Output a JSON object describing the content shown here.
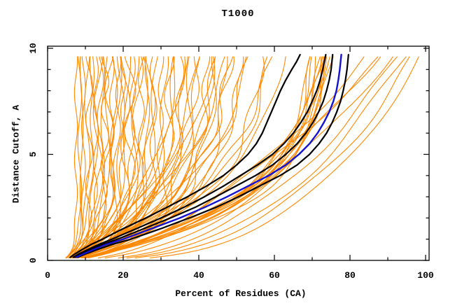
{
  "chart_data": {
    "type": "line",
    "title": "T1000",
    "xlabel": "Percent of Residues (CA)",
    "ylabel": "Distance Cutoff, A",
    "xlim": [
      0,
      100
    ],
    "ylim": [
      0,
      10
    ],
    "x_major_ticks": [
      0,
      20,
      40,
      60,
      80,
      100
    ],
    "x_minor_ticks": [
      10,
      30,
      50,
      70,
      90
    ],
    "y_major_ticks": [
      0,
      5,
      10
    ],
    "y_minor_ticks": [
      1,
      2,
      3,
      4,
      6,
      7,
      8,
      9
    ],
    "grid": false,
    "legend": "none",
    "background": "#ffffff",
    "frame_color": "#000000",
    "curve_y_start": 0.12,
    "curve_y_end": 9.7,
    "highlight_cutoffs": [
      0.15,
      0.3,
      0.5,
      0.75,
      1,
      1.5,
      2,
      2.5,
      3,
      3.5,
      4,
      4.5,
      5,
      5.5,
      6,
      6.5,
      7,
      7.5,
      8,
      8.5,
      9,
      9.35,
      9.7
    ],
    "highlighted_series": [
      {
        "name": "model-black-1",
        "color": "#000000",
        "width": 2.2,
        "percents": [
          6,
          7.2,
          9,
          11.5,
          14.5,
          20,
          26,
          31.5,
          37,
          42,
          46.5,
          50,
          53,
          55.2,
          56.8,
          58,
          59.2,
          60.4,
          61.6,
          63,
          64.6,
          65.8,
          66.8
        ]
      },
      {
        "name": "model-black-2",
        "color": "#000000",
        "width": 2.2,
        "percents": [
          6.8,
          8.2,
          10.5,
          13.5,
          17,
          23.5,
          30,
          36,
          41.5,
          46.5,
          51,
          55.5,
          59.5,
          62.5,
          65,
          67,
          68.7,
          70,
          71.2,
          72.1,
          72.8,
          73.2,
          73.6
        ]
      },
      {
        "name": "model-black-3",
        "color": "#000000",
        "width": 2.2,
        "percents": [
          7.2,
          8.8,
          11.2,
          14.5,
          18.5,
          25.5,
          32.5,
          39,
          44.5,
          49.8,
          55,
          59.5,
          63,
          66,
          68.3,
          70.2,
          71.7,
          72.9,
          73.8,
          74.5,
          75,
          75.2,
          75.4
        ]
      },
      {
        "name": "model-black-4",
        "color": "#000000",
        "width": 2.2,
        "percents": [
          8,
          10,
          13,
          17,
          22,
          30,
          37.5,
          44.5,
          50.5,
          56,
          61.5,
          66,
          69.3,
          71.8,
          73.8,
          75.3,
          76.5,
          77.5,
          78.2,
          78.8,
          79.2,
          79.4,
          79.6
        ]
      },
      {
        "name": "model-blue",
        "color": "#1212d0",
        "width": 2.4,
        "percents": [
          7.6,
          9.4,
          12,
          15.5,
          20,
          27.5,
          35,
          41.5,
          47.5,
          53,
          58.5,
          63,
          66.5,
          69.3,
          71.4,
          73.1,
          74.5,
          75.6,
          76.4,
          76.9,
          77.3,
          77.5,
          77.7
        ]
      }
    ],
    "ensemble_series": {
      "name": "predictions-orange",
      "color": "#ff8800",
      "width": 1.1,
      "curve_param_format": [
        "model e: p=p10-(p10-p0)*exp(-y/k) | model p: p=p0+(p10-p0)*(y/10)^k",
        "p0",
        "p10",
        "k",
        "wiggle_amp",
        "wiggle_freq",
        "wiggle_phase"
      ],
      "curves": [
        [
          "e",
          4.5,
          9.5,
          0.55,
          0.5,
          1.7,
          0.3
        ],
        [
          "e",
          5,
          10.5,
          0.8,
          0.7,
          1.2,
          2.1
        ],
        [
          "e",
          5.5,
          11,
          0.6,
          0.9,
          2.0,
          4.0
        ],
        [
          "e",
          4,
          11.8,
          1.1,
          0.5,
          1.5,
          1.0
        ],
        [
          "e",
          6,
          12.3,
          0.7,
          1.1,
          0.9,
          2.6
        ],
        [
          "e",
          4.8,
          12.8,
          0.9,
          0.6,
          2.2,
          0.7
        ],
        [
          "e",
          5.2,
          13.4,
          0.5,
          1.3,
          1.1,
          3.3
        ],
        [
          "e",
          4.2,
          14,
          1.3,
          0.8,
          1.8,
          5.1
        ],
        [
          "e",
          5.8,
          14.6,
          0.75,
          0.5,
          1.4,
          1.9
        ],
        [
          "e",
          4.6,
          15.2,
          1.0,
          1.0,
          2.4,
          0.2
        ],
        [
          "e",
          5.4,
          15.8,
          0.6,
          0.7,
          1.0,
          2.9
        ],
        [
          "e",
          4.9,
          16.4,
          1.4,
          1.2,
          1.6,
          4.4
        ],
        [
          "e",
          5.1,
          17,
          0.8,
          0.6,
          2.1,
          1.4
        ],
        [
          "e",
          4.4,
          17.6,
          1.1,
          0.9,
          1.3,
          3.8
        ],
        [
          "e",
          5.6,
          18.2,
          0.65,
          1.4,
          0.8,
          0.9
        ],
        [
          "e",
          4.7,
          18.8,
          1.5,
          0.7,
          1.9,
          2.4
        ],
        [
          "e",
          5.3,
          19.4,
          0.9,
          1.0,
          1.2,
          5.6
        ],
        [
          "e",
          4.3,
          20,
          1.2,
          0.6,
          2.3,
          1.1
        ],
        [
          "e",
          5.7,
          20.6,
          0.7,
          1.2,
          1.5,
          3.0
        ],
        [
          "e",
          4.8,
          21.2,
          1.6,
          0.8,
          1.0,
          4.7
        ],
        [
          "e",
          5.0,
          21.8,
          0.85,
          1.5,
          1.7,
          0.5
        ],
        [
          "e",
          4.5,
          22.5,
          1.25,
          0.7,
          2.0,
          2.2
        ],
        [
          "e",
          5.9,
          23.2,
          0.95,
          1.0,
          1.1,
          3.6
        ],
        [
          "e",
          4.6,
          24,
          1.45,
          1.3,
          1.4,
          1.6
        ],
        [
          "e",
          5.2,
          24.8,
          0.75,
          0.8,
          2.2,
          4.9
        ],
        [
          "e",
          4.9,
          25.6,
          1.7,
          1.1,
          0.9,
          0.8
        ],
        [
          "e",
          5.5,
          26.4,
          1.05,
          0.6,
          1.6,
          2.8
        ],
        [
          "e",
          4.4,
          27.2,
          1.35,
          1.4,
          1.2,
          5.3
        ],
        [
          "e",
          5.8,
          28,
          0.8,
          0.9,
          1.8,
          1.3
        ],
        [
          "e",
          4.7,
          29,
          1.9,
          1.2,
          1.0,
          3.2
        ],
        [
          "e",
          5.1,
          30,
          1.15,
          0.7,
          2.1,
          0.4
        ],
        [
          "e",
          4.5,
          31,
          1.5,
          1.0,
          1.3,
          2.0
        ],
        [
          "e",
          5.6,
          32.2,
          0.9,
          1.3,
          1.7,
          4.2
        ],
        [
          "e",
          4.8,
          33.5,
          1.8,
          0.8,
          1.1,
          1.8
        ],
        [
          "e",
          5.3,
          35,
          1.2,
          1.1,
          1.9,
          3.5
        ],
        [
          "e",
          4.6,
          36.5,
          2.1,
          0.9,
          1.4,
          0.6
        ],
        [
          "e",
          5.0,
          38,
          1.4,
          1.2,
          1.0,
          2.5
        ],
        [
          "e",
          5.5,
          40,
          2.3,
          0.8,
          1.6,
          4.6
        ],
        [
          "e",
          4.9,
          42,
          1.6,
          1.0,
          2.0,
          1.2
        ],
        [
          "e",
          5.2,
          44.5,
          2.6,
          1.1,
          1.2,
          3.9
        ],
        [
          "e",
          4.7,
          47,
          1.9,
          0.9,
          1.5,
          0.1
        ],
        [
          "e",
          5.4,
          49.5,
          2.9,
          1.2,
          1.8,
          2.7
        ],
        [
          "e",
          4.5,
          35.5,
          3.2,
          1.0,
          0.9,
          1.5
        ],
        [
          "e",
          5.0,
          38.5,
          3.6,
          0.8,
          1.3,
          3.1
        ],
        [
          "e",
          5.5,
          41,
          2.8,
          1.1,
          1.7,
          0.7
        ],
        [
          "e",
          4.8,
          43.5,
          4.0,
          0.9,
          1.1,
          2.3
        ],
        [
          "e",
          5.2,
          46,
          3.0,
          1.2,
          1.5,
          4.5
        ],
        [
          "e",
          4.6,
          48.5,
          4.3,
          0.8,
          0.8,
          1.0
        ],
        [
          "e",
          5.7,
          51,
          3.3,
          1.0,
          1.9,
          2.9
        ],
        [
          "e",
          4.9,
          53.5,
          4.6,
          0.9,
          1.2,
          0.3
        ],
        [
          "e",
          5.3,
          56,
          3.5,
          1.1,
          1.6,
          3.7
        ],
        [
          "e",
          4.7,
          58.5,
          4.1,
          0.8,
          1.0,
          1.7
        ],
        [
          "e",
          5.1,
          61,
          3.1,
          1.0,
          1.4,
          5.0
        ],
        [
          "e",
          5.6,
          63.5,
          3.8,
          0.9,
          1.8,
          2.1
        ],
        [
          "e",
          4.8,
          66,
          3.4,
          0.7,
          1.1,
          4.1
        ],
        [
          "e",
          5.4,
          58,
          2.7,
          1.2,
          1.5,
          0.9
        ],
        [
          "e",
          4.6,
          52,
          2.5,
          0.9,
          1.9,
          2.6
        ],
        [
          "e",
          5.0,
          45,
          2.2,
          1.1,
          1.3,
          4.8
        ],
        [
          "e",
          6.5,
          71,
          2.6,
          0.6,
          1.2,
          1.1
        ],
        [
          "e",
          7.0,
          72,
          2.8,
          0.8,
          1.6,
          2.8
        ],
        [
          "e",
          6.0,
          72.6,
          2.5,
          0.5,
          1.0,
          0.5
        ],
        [
          "e",
          7.5,
          73.2,
          3.0,
          0.7,
          1.4,
          4.0
        ],
        [
          "e",
          6.8,
          73.8,
          2.7,
          0.6,
          1.8,
          1.9
        ],
        [
          "e",
          6.2,
          74.4,
          2.9,
          0.8,
          1.1,
          3.4
        ],
        [
          "e",
          7.2,
          75,
          2.6,
          0.5,
          1.5,
          0.2
        ],
        [
          "e",
          6.6,
          75.5,
          3.1,
          0.7,
          1.9,
          2.4
        ],
        [
          "e",
          7.4,
          76,
          2.8,
          0.6,
          1.2,
          5.2
        ],
        [
          "e",
          6.4,
          76.6,
          3.2,
          0.8,
          1.6,
          1.4
        ],
        [
          "e",
          7.1,
          77.2,
          2.9,
          0.5,
          1.0,
          3.0
        ],
        [
          "e",
          6.9,
          78,
          3.0,
          0.7,
          1.3,
          0.8
        ],
        [
          "e",
          6.3,
          74.8,
          2.4,
          0.6,
          1.7,
          2.2
        ],
        [
          "p",
          4.5,
          86,
          0.58,
          1.0,
          0.9,
          1.2
        ],
        [
          "p",
          5.0,
          89,
          0.52,
          0.9,
          1.2,
          3.0
        ],
        [
          "p",
          4.2,
          92,
          0.47,
          1.1,
          0.8,
          0.6
        ],
        [
          "p",
          5.5,
          94,
          0.43,
          0.8,
          1.1,
          2.0
        ],
        [
          "p",
          4.8,
          96,
          0.39,
          1.0,
          0.9,
          4.2
        ],
        [
          "p",
          4.0,
          98,
          0.36,
          0.9,
          1.0,
          1.6
        ],
        [
          "p",
          5.2,
          99.5,
          0.33,
          0.8,
          0.7,
          2.8
        ],
        [
          "p",
          4.6,
          90.5,
          0.62,
          1.0,
          1.1,
          0.3
        ],
        [
          "e",
          4,
          7.5,
          0.45,
          0.4,
          2.0,
          1.5
        ],
        [
          "e",
          3.8,
          8.5,
          0.5,
          0.5,
          1.4,
          3.2
        ],
        [
          "e",
          4.2,
          9,
          0.6,
          0.4,
          1.1,
          0.9
        ]
      ]
    }
  }
}
